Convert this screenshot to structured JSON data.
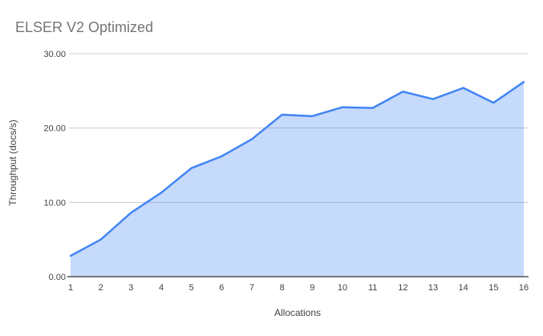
{
  "title": "ELSER V2 Optimized",
  "chart_data": {
    "type": "area",
    "title": "ELSER V2 Optimized",
    "xlabel": "Allocations",
    "ylabel": "Throughput (docs/s)",
    "x": [
      1,
      2,
      3,
      4,
      5,
      6,
      7,
      8,
      9,
      10,
      11,
      12,
      13,
      14,
      15,
      16
    ],
    "xtick_labels": [
      "1",
      "2",
      "3",
      "4",
      "5",
      "6",
      "7",
      "8",
      "9",
      "10",
      "11",
      "12",
      "13",
      "14",
      "15",
      "16"
    ],
    "values": [
      2.8,
      5.0,
      8.6,
      11.3,
      14.6,
      16.2,
      18.5,
      21.8,
      21.6,
      22.8,
      22.7,
      24.9,
      23.9,
      25.4,
      23.4,
      26.2
    ],
    "ylim": [
      0,
      30
    ],
    "yticks": [
      0,
      10,
      20,
      30
    ],
    "ytick_labels": [
      "0.00",
      "10.00",
      "20.00",
      "30.00"
    ],
    "grid": true,
    "legend_position": "none",
    "colors": {
      "line": "#4285f4",
      "fill": "rgba(66,133,244,0.3)",
      "gridline": "#cccccc",
      "axis_line": "#333333",
      "title_text": "#757575",
      "tick_text": "#424242"
    }
  }
}
